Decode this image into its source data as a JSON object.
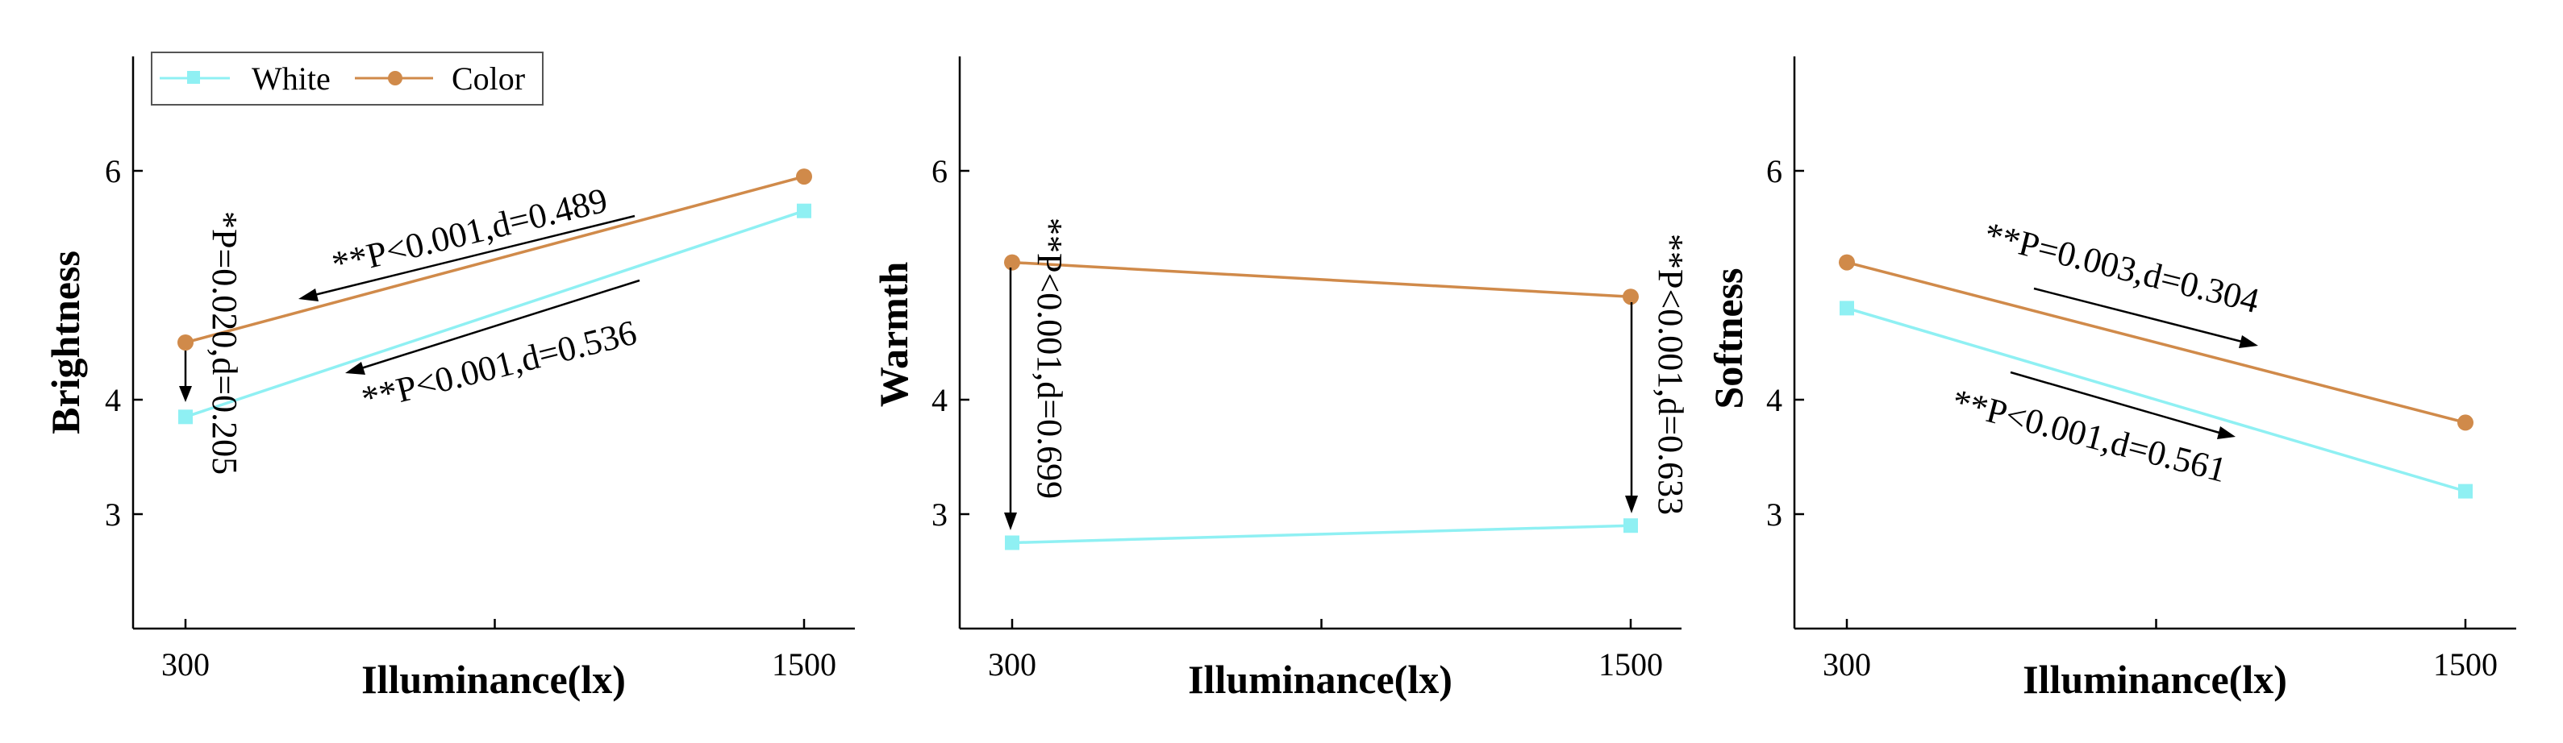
{
  "colors": {
    "white": "#8ff0f3",
    "color": "#d08a4a"
  },
  "legend": {
    "white_label": "White",
    "color_label": "Color"
  },
  "chart_data": [
    {
      "type": "line",
      "ylabel": "Brightness",
      "xlabel": "Illuminance(lx)",
      "categories": [
        "300",
        "1500"
      ],
      "yticks": [
        3,
        4,
        6
      ],
      "ylim": [
        2,
        7
      ],
      "series": [
        {
          "name": "White",
          "values": [
            3.85,
            5.65
          ]
        },
        {
          "name": "Color",
          "values": [
            4.5,
            5.95
          ]
        }
      ],
      "annotations": [
        "*P=0.020,d=0.205",
        "**P<0.001,d=0.489",
        "**P<0.001,d=0.536"
      ]
    },
    {
      "type": "line",
      "ylabel": "Warmth",
      "xlabel": "Illuminance(lx)",
      "categories": [
        "300",
        "1500"
      ],
      "yticks": [
        3,
        4,
        6
      ],
      "ylim": [
        2,
        7
      ],
      "series": [
        {
          "name": "White",
          "values": [
            2.75,
            2.9
          ]
        },
        {
          "name": "Color",
          "values": [
            5.2,
            4.9
          ]
        }
      ],
      "annotations": [
        "**P<0.001,d=0.699",
        "**P<0.001,d=0.633"
      ]
    },
    {
      "type": "line",
      "ylabel": "Softness",
      "xlabel": "Illuminance(lx)",
      "categories": [
        "300",
        "1500"
      ],
      "yticks": [
        3,
        4,
        6
      ],
      "ylim": [
        2,
        7
      ],
      "series": [
        {
          "name": "White",
          "values": [
            4.8,
            3.2
          ]
        },
        {
          "name": "Color",
          "values": [
            5.2,
            3.8
          ]
        }
      ],
      "annotations": [
        "**P=0.003,d=0.304",
        "**P<0.001,d=0.561"
      ]
    }
  ]
}
